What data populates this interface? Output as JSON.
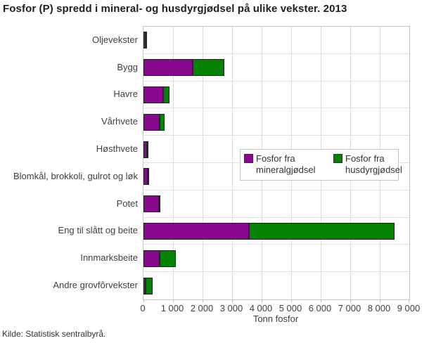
{
  "title": "Fosfor (P) spredd i mineral- og husdyrgjødsel på ulike vekster. 2013",
  "source": "Kilde: Statistisk sentralbyrå.",
  "colors": {
    "mineral": "#89078d",
    "husdyr": "#058205",
    "bar_border": "#262626",
    "grid": "#dcdcdc",
    "frame": "#c6c6c6"
  },
  "chart_data": {
    "type": "bar",
    "orientation": "horizontal",
    "stacked": true,
    "title": "Fosfor (P) spredd i mineral- og husdyrgjødsel på ulike vekster. 2013",
    "categories": [
      "Oljevekster",
      "Bygg",
      "Havre",
      "Vårhvete",
      "Høsthvete",
      "Blomkål, brokkoli, gulrot og løk",
      "Potet",
      "Eng til slått og beite",
      "Innmarksbeite",
      "Andre grovfôrvekster"
    ],
    "series": [
      {
        "name": "Fosfor fra mineralgjødsel",
        "color": "#89078d",
        "values": [
          80,
          1660,
          660,
          540,
          130,
          140,
          530,
          3580,
          550,
          65
        ]
      },
      {
        "name": "Fosfor fra husdyrgjødsel",
        "color": "#058205",
        "values": [
          10,
          1070,
          215,
          175,
          25,
          25,
          40,
          4920,
          535,
          250
        ]
      }
    ],
    "xlabel": "Tonn fosfor",
    "xlim": [
      0,
      9000
    ],
    "xticks": [
      0,
      1000,
      2000,
      3000,
      4000,
      5000,
      6000,
      7000,
      8000,
      9000
    ],
    "xtick_labels": [
      "0",
      "1 000",
      "2 000",
      "3 000",
      "4 000",
      "5 000",
      "6 000",
      "7 000",
      "8 000",
      "9 000"
    ],
    "grid": true,
    "legend_position": "center-right"
  }
}
